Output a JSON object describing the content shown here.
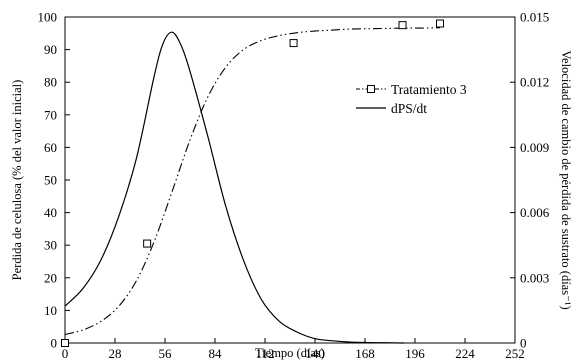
{
  "chart_data": {
    "type": "line",
    "xlabel": "Tiempo (días)",
    "ylabel_left": "Perdida de celulosa (% del valor inicial)",
    "ylabel_right": "Velocidad de cambio de pérdida de sustrato (días⁻¹)",
    "xlim": [
      0,
      252
    ],
    "ylim_left": [
      0,
      100
    ],
    "ylim_right": [
      0,
      0.015
    ],
    "x_ticks": [
      0,
      28,
      56,
      84,
      112,
      140,
      168,
      196,
      224,
      252
    ],
    "y_left_ticks": [
      0,
      10,
      20,
      30,
      40,
      50,
      60,
      70,
      80,
      90,
      100
    ],
    "y_right_ticks": [
      "0",
      "0.003",
      "0.006",
      "0.009",
      "0.012",
      "0.015"
    ],
    "grid": false,
    "legend_position": "right-middle",
    "series": [
      {
        "name": "Tratamiento 3",
        "axis": "left",
        "style": "dash-dot-dot with square markers",
        "fit_x": [
          0,
          10,
          20,
          30,
          40,
          50,
          60,
          70,
          80,
          90,
          100,
          110,
          120,
          130,
          140,
          150,
          160,
          170,
          180,
          190,
          200,
          210
        ],
        "fit_y": [
          2.6,
          4.0,
          6.6,
          11.2,
          19.1,
          31.2,
          46.5,
          62.3,
          75.5,
          84.6,
          90.0,
          92.8,
          94.3,
          95.2,
          95.7,
          96.0,
          96.3,
          96.4,
          96.5,
          96.6,
          96.6,
          96.7
        ],
        "points_x": [
          0,
          46,
          128,
          189,
          210
        ],
        "points_y": [
          0,
          30.5,
          92,
          97.5,
          98
        ]
      },
      {
        "name": "dPS/dt",
        "axis": "right",
        "style": "solid",
        "x": [
          0,
          10,
          20,
          30,
          40,
          50,
          55,
          60,
          65,
          70,
          80,
          90,
          100,
          110,
          120,
          130,
          140,
          150,
          160,
          170,
          180,
          190
        ],
        "y": [
          0.0017,
          0.0025,
          0.0038,
          0.0058,
          0.0085,
          0.0123,
          0.0138,
          0.0143,
          0.0137,
          0.0125,
          0.0095,
          0.0063,
          0.0038,
          0.002,
          0.001,
          0.0005,
          0.0002,
          0.0001,
          4e-05,
          2e-05,
          1e-05,
          0
        ]
      }
    ]
  }
}
